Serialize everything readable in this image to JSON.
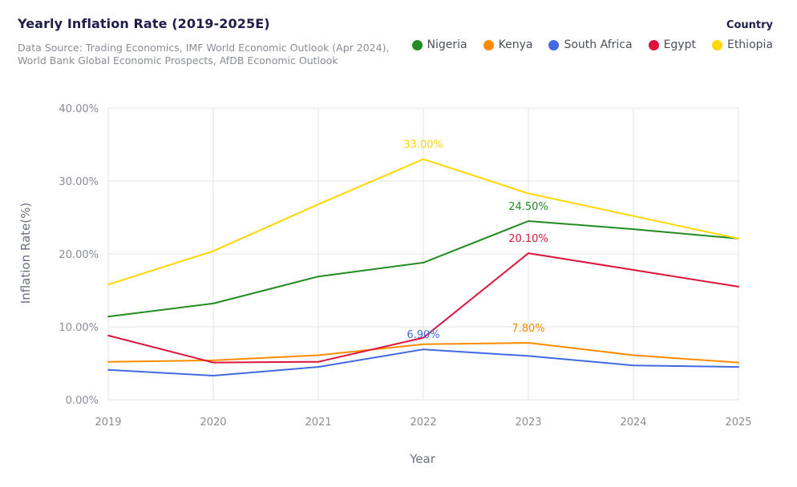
{
  "header": {
    "title": "Yearly Inflation Rate (2019-2025E)",
    "subtitle": "Data Source: Trading Economics, IMF World Economic Outlook (Apr 2024), World Bank Global Economic Prospects, AfDB Economic Outlook"
  },
  "legend": {
    "title": "Country"
  },
  "chart_data": {
    "type": "line",
    "title": "Yearly Inflation Rate (2019-2025E)",
    "xlabel": "Year",
    "ylabel": "Inflation Rate(%)",
    "x": [
      2019,
      2020,
      2021,
      2022,
      2023,
      2024,
      2025
    ],
    "ylim": [
      0,
      40
    ],
    "yticks": [
      0,
      10,
      20,
      30,
      40
    ],
    "ytick_labels": [
      "0.00%",
      "10.00%",
      "20.00%",
      "30.00%",
      "40.00%"
    ],
    "grid": true,
    "legend_position": "top-right",
    "series": [
      {
        "name": "Nigeria",
        "color": "#228b22",
        "values": [
          11.4,
          13.2,
          16.9,
          18.8,
          24.5,
          23.4,
          22.1
        ],
        "labels": [
          {
            "x": 2023,
            "text": "24.50%"
          }
        ]
      },
      {
        "name": "Kenya",
        "color": "#ff8c00",
        "values": [
          5.2,
          5.4,
          6.1,
          7.6,
          7.8,
          6.1,
          5.1
        ],
        "labels": [
          {
            "x": 2023,
            "text": "7.80%"
          }
        ]
      },
      {
        "name": "South Africa",
        "color": "#4169e1",
        "values": [
          4.1,
          3.3,
          4.5,
          6.9,
          6.0,
          4.7,
          4.5
        ],
        "labels": [
          {
            "x": 2022,
            "text": "6.90%"
          }
        ]
      },
      {
        "name": "Egypt",
        "color": "#dc143c",
        "values": [
          8.8,
          5.1,
          5.2,
          8.5,
          20.1,
          17.8,
          15.5
        ],
        "labels": [
          {
            "x": 2023,
            "text": "20.10%"
          }
        ]
      },
      {
        "name": "Ethiopia",
        "color": "#ffd700",
        "values": [
          15.8,
          20.4,
          26.8,
          33.0,
          28.3,
          25.2,
          22.1
        ],
        "labels": [
          {
            "x": 2022,
            "text": "33.00%"
          }
        ]
      }
    ]
  }
}
